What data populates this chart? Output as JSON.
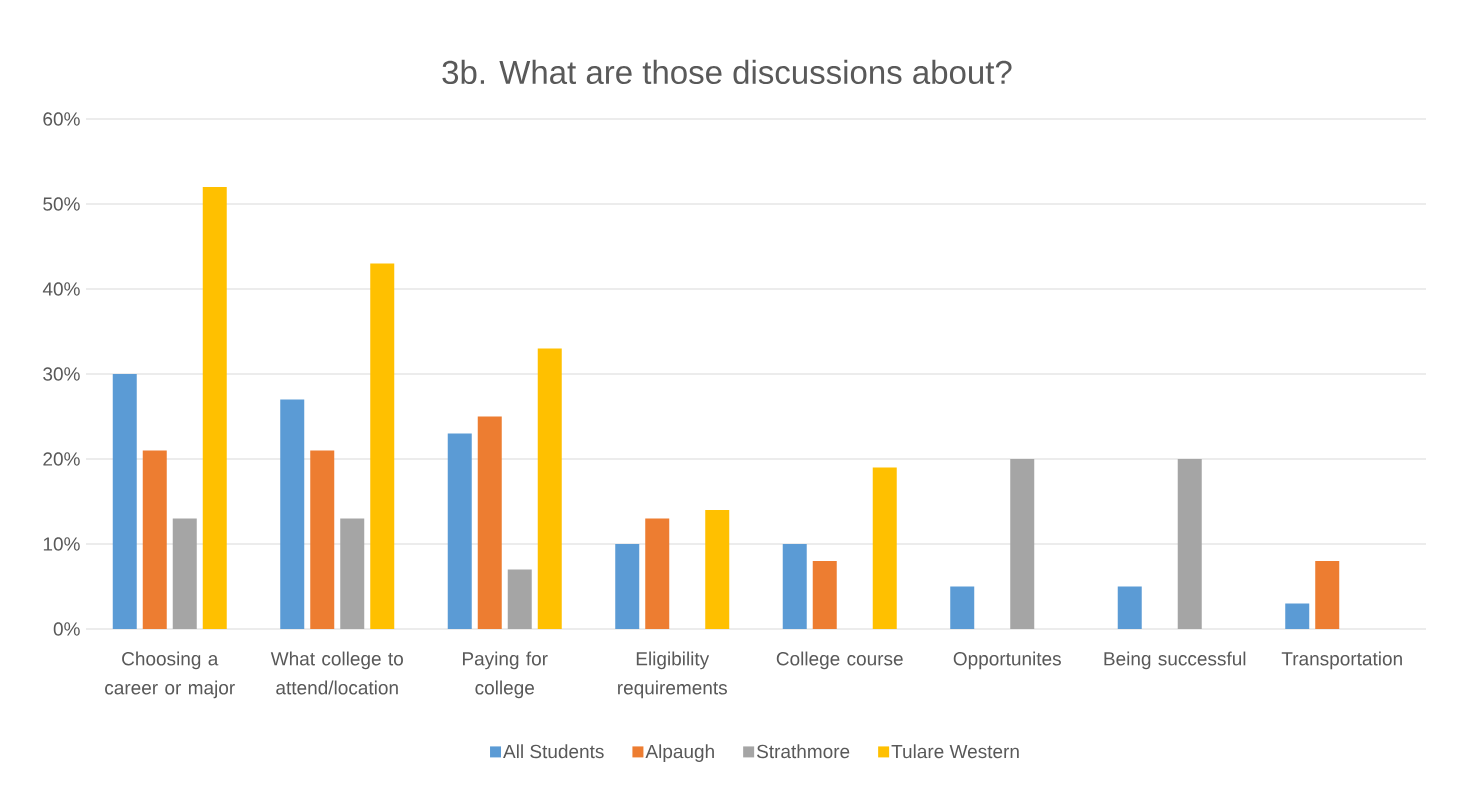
{
  "chart_data": {
    "type": "bar",
    "title": "3b. What are those discussions about?",
    "categories": [
      "Choosing a career or major",
      "What college to attend/location",
      "Paying for college",
      "Eligibility requirements",
      "College course",
      "Opportunites",
      "Being successful",
      "Transportation"
    ],
    "series": [
      {
        "name": "All Students",
        "color": "#5b9bd5",
        "values": [
          30,
          27,
          23,
          10,
          10,
          5,
          5,
          3
        ]
      },
      {
        "name": "Alpaugh",
        "color": "#ed7d31",
        "values": [
          21,
          21,
          25,
          13,
          8,
          null,
          null,
          8
        ]
      },
      {
        "name": "Strathmore",
        "color": "#a5a5a5",
        "values": [
          13,
          13,
          7,
          null,
          null,
          20,
          20,
          null
        ]
      },
      {
        "name": "Tulare Western",
        "color": "#ffc000",
        "values": [
          52,
          43,
          33,
          14,
          19,
          null,
          null,
          null
        ]
      }
    ],
    "ylim": [
      0,
      60
    ],
    "yticks": [
      {
        "value": 0,
        "label": "0%"
      },
      {
        "value": 10,
        "label": "10%"
      },
      {
        "value": 20,
        "label": "20%"
      },
      {
        "value": 30,
        "label": "30%"
      },
      {
        "value": 40,
        "label": "40%"
      },
      {
        "value": 50,
        "label": "50%"
      },
      {
        "value": 60,
        "label": "60%"
      }
    ],
    "grid": "y",
    "legend": "bottom"
  }
}
